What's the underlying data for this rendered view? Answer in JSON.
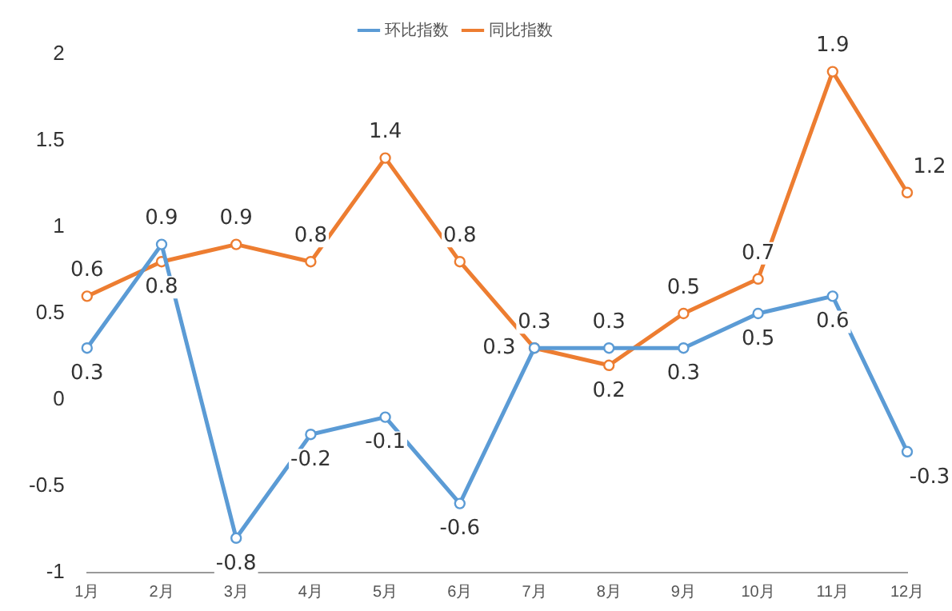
{
  "chart_data": {
    "type": "line",
    "categories": [
      "1月",
      "2月",
      "3月",
      "4月",
      "5月",
      "6月",
      "7月",
      "8月",
      "9月",
      "10月",
      "11月",
      "12月"
    ],
    "series": [
      {
        "name": "环比指数",
        "color": "#5b9bd5",
        "values": [
          0.3,
          0.9,
          -0.8,
          -0.2,
          -0.1,
          -0.6,
          0.3,
          0.3,
          0.3,
          0.5,
          0.6,
          -0.3
        ]
      },
      {
        "name": "同比指数",
        "color": "#ed7d31",
        "values": [
          0.6,
          0.8,
          0.9,
          0.8,
          1.4,
          0.8,
          0.3,
          0.2,
          0.5,
          0.7,
          1.9,
          1.2
        ]
      }
    ],
    "ylim": [
      -1,
      2
    ],
    "yticks": [
      -1,
      -0.5,
      0,
      0.5,
      1,
      1.5,
      2
    ],
    "grid": false,
    "legend": "top",
    "marker": "circle",
    "line_style": "solid",
    "data_labels": true
  }
}
